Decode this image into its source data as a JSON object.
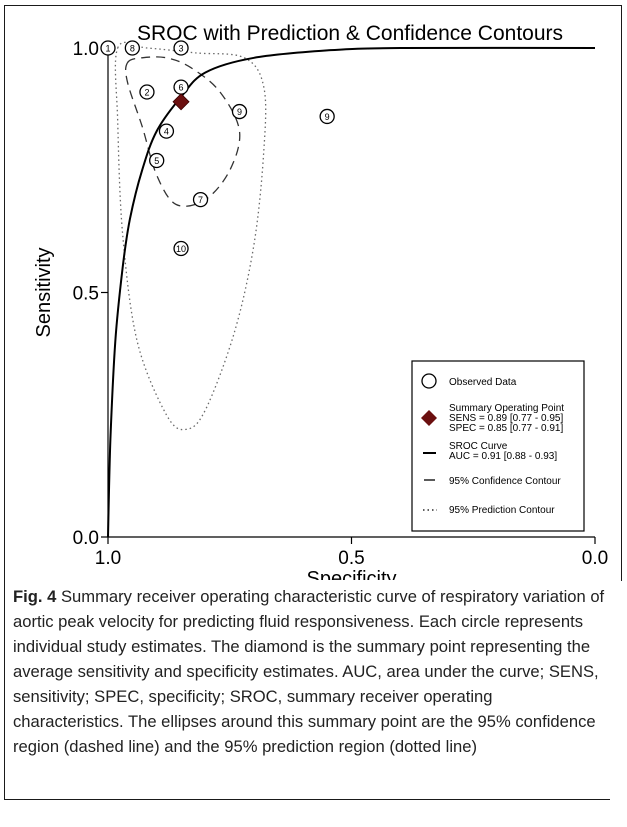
{
  "chart_data": {
    "type": "scatter",
    "title": "SROC with Prediction & Confidence Contours",
    "xlabel": "Specificity",
    "ylabel": "Sensitivity",
    "x_reversed": true,
    "xlim": [
      1.0,
      0.0
    ],
    "ylim": [
      0.0,
      1.0
    ],
    "x_ticks": [
      "1.0",
      "0.5",
      "0.0"
    ],
    "y_ticks": [
      "0.0",
      "0.5",
      "1.0"
    ],
    "grid": false,
    "legend_position": "bottom-right",
    "observed_points": [
      {
        "label": "1",
        "specificity": 1.0,
        "sensitivity": 1.0
      },
      {
        "label": "8",
        "specificity": 0.95,
        "sensitivity": 1.0
      },
      {
        "label": "3",
        "specificity": 0.85,
        "sensitivity": 1.0
      },
      {
        "label": "2",
        "specificity": 0.92,
        "sensitivity": 0.91
      },
      {
        "label": "6",
        "specificity": 0.85,
        "sensitivity": 0.92
      },
      {
        "label": "4",
        "specificity": 0.88,
        "sensitivity": 0.83
      },
      {
        "label": "5",
        "specificity": 0.9,
        "sensitivity": 0.77
      },
      {
        "label": "9",
        "specificity": 0.73,
        "sensitivity": 0.87
      },
      {
        "label": "9",
        "specificity": 0.55,
        "sensitivity": 0.86
      },
      {
        "label": "7",
        "specificity": 0.81,
        "sensitivity": 0.69
      },
      {
        "label": "10",
        "specificity": 0.85,
        "sensitivity": 0.59
      }
    ],
    "summary_point": {
      "specificity": 0.85,
      "sensitivity": 0.89
    },
    "sroc_curve": [
      [
        1.0,
        0.0
      ],
      [
        0.995,
        0.2
      ],
      [
        0.985,
        0.4
      ],
      [
        0.97,
        0.55
      ],
      [
        0.955,
        0.65
      ],
      [
        0.93,
        0.75
      ],
      [
        0.9,
        0.83
      ],
      [
        0.85,
        0.9
      ],
      [
        0.8,
        0.95
      ],
      [
        0.7,
        0.98
      ],
      [
        0.55,
        0.995
      ],
      [
        0.4,
        1.0
      ],
      [
        0.0,
        1.0
      ]
    ],
    "confidence_contour": [
      [
        0.96,
        0.97
      ],
      [
        0.93,
        0.98
      ],
      [
        0.88,
        0.98
      ],
      [
        0.83,
        0.96
      ],
      [
        0.77,
        0.91
      ],
      [
        0.73,
        0.83
      ],
      [
        0.75,
        0.75
      ],
      [
        0.8,
        0.69
      ],
      [
        0.86,
        0.68
      ],
      [
        0.9,
        0.74
      ],
      [
        0.93,
        0.84
      ],
      [
        0.96,
        0.93
      ],
      [
        0.96,
        0.97
      ]
    ],
    "prediction_contour": [
      [
        0.98,
        1.0
      ],
      [
        0.92,
        1.0
      ],
      [
        0.82,
        0.99
      ],
      [
        0.72,
        0.98
      ],
      [
        0.68,
        0.92
      ],
      [
        0.68,
        0.79
      ],
      [
        0.7,
        0.6
      ],
      [
        0.74,
        0.42
      ],
      [
        0.8,
        0.26
      ],
      [
        0.84,
        0.22
      ],
      [
        0.88,
        0.25
      ],
      [
        0.94,
        0.4
      ],
      [
        0.97,
        0.62
      ],
      [
        0.98,
        0.85
      ],
      [
        0.98,
        1.0
      ]
    ],
    "legend": [
      {
        "marker": "circle",
        "text": "Observed Data"
      },
      {
        "marker": "diamond",
        "text": "Summary Operating Point",
        "lines": [
          "SENS = 0.89 [0.77 - 0.95]",
          "SPEC = 0.85 [0.77 - 0.91]"
        ]
      },
      {
        "marker": "line",
        "text": "SROC Curve",
        "lines": [
          "AUC = 0.91 [0.88 - 0.93]"
        ]
      },
      {
        "marker": "line-short",
        "text": "95% Confidence Contour"
      },
      {
        "marker": "dots",
        "text": "95% Prediction Contour"
      }
    ]
  },
  "colors": {
    "summary_diamond": "#6b0f0f",
    "curve": "#000000",
    "contour": "#333333",
    "prediction_contour": "#6a6a6a"
  },
  "caption": {
    "label": "Fig. 4",
    "text": "Summary receiver operating characteristic curve of respiratory variation of aortic peak velocity for predicting fluid responsiveness. Each circle represents individual study estimates. The diamond is the summary point representing the average sensitivity and specificity estimates. AUC, area under the curve; SENS, sensitivity; SPEC, specificity; SROC, summary receiver operating characteristics. The ellipses around this summary point are the 95% confidence region (dashed line) and the 95% prediction region (dotted line)"
  }
}
